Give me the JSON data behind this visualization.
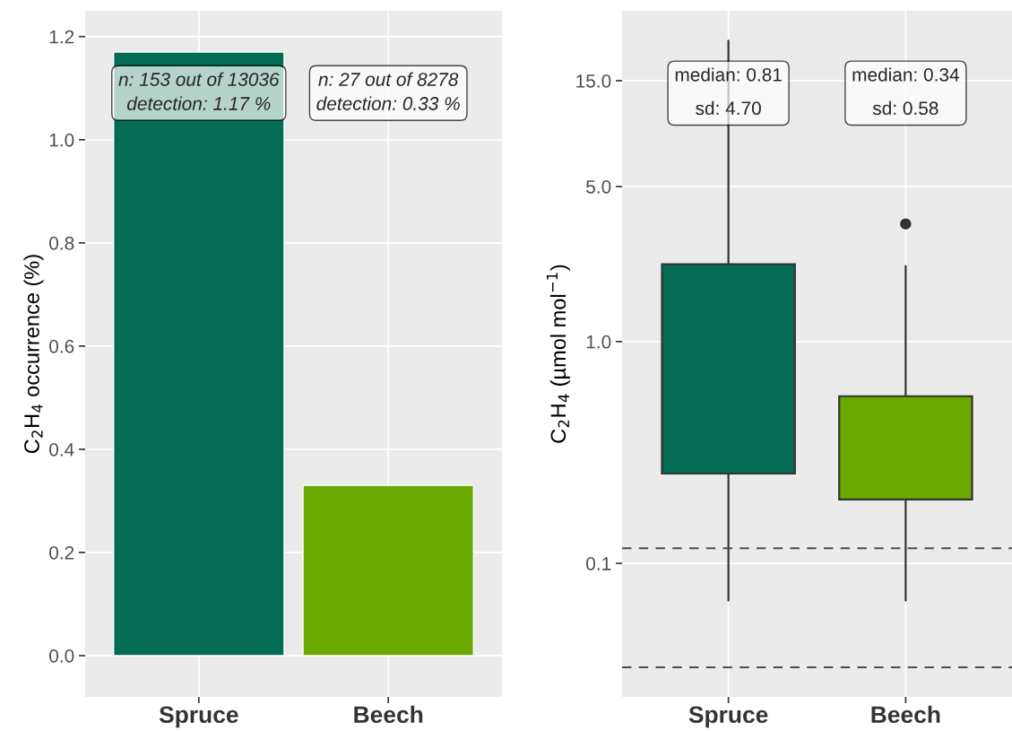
{
  "chart_data": [
    {
      "type": "bar",
      "ylabel": "C$_{2}$H$_{4}$ occurrence (%)",
      "categories": [
        "Spruce",
        "Beech"
      ],
      "values": [
        1.17,
        0.33
      ],
      "colors": [
        "#046c52",
        "#6aaa00"
      ],
      "ylim": [
        -0.08,
        1.25
      ],
      "yticks": [
        {
          "value": 0.0,
          "label": "0.0"
        },
        {
          "value": 0.2,
          "label": "0.2"
        },
        {
          "value": 0.4,
          "label": "0.4"
        },
        {
          "value": 0.6,
          "label": "0.6"
        },
        {
          "value": 0.8,
          "label": "0.8"
        },
        {
          "value": 1.0,
          "label": "1.0"
        },
        {
          "value": 1.2,
          "label": "1.2"
        }
      ],
      "grid": true,
      "annotations": [
        "n: 153 out of 13036\ndetection: 1.17 %",
        "n: 27 out of 8278\ndetection: 0.33 %"
      ]
    },
    {
      "type": "box",
      "ylabel": "C$_{2}$H$_{4}$ (µmol mol$^{−1}$)",
      "categories": [
        "Spruce",
        "Beech"
      ],
      "colors": [
        "#046c52",
        "#6aaa00"
      ],
      "log": true,
      "ylim": [
        0.025,
        31
      ],
      "yticks": [
        {
          "value": 0.1,
          "label": "0.1"
        },
        {
          "value": 1.0,
          "label": "1.0"
        },
        {
          "value": 5.0,
          "label": "5.0"
        },
        {
          "value": 15.0,
          "label": "15.0"
        }
      ],
      "grid": true,
      "boxes": [
        {
          "low": 0.068,
          "q1": 0.254,
          "median": 0.78,
          "q3": 2.23,
          "high": 22.7
        },
        {
          "low": 0.068,
          "q1": 0.194,
          "median": 0.264,
          "q3": 0.567,
          "high": 2.19,
          "outliers": [
            3.39
          ]
        }
      ],
      "ref_lines": [
        {
          "axis": "y",
          "value": 0.117,
          "color": "#4d4d4d",
          "line_style": "dashed"
        },
        {
          "axis": "y",
          "value": 0.034,
          "color": "#4d4d4d",
          "line_style": "dashed"
        }
      ],
      "annotations": [
        "median: 0.81\n\nsd: 4.70",
        "median: 0.34\n\nsd: 0.58"
      ]
    }
  ]
}
